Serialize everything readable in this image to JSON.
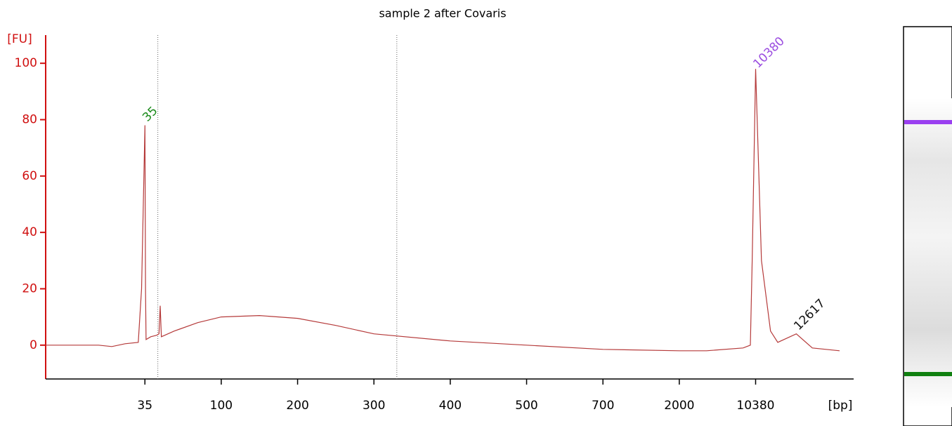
{
  "chart_data": {
    "type": "line",
    "title": "sample 2 after Covaris",
    "ylabel": "[FU]",
    "xlabel": "[bp]",
    "xlim": [
      20,
      15000
    ],
    "xticks": [
      35,
      100,
      200,
      300,
      400,
      500,
      700,
      2000,
      10380
    ],
    "ylim": [
      -12,
      110
    ],
    "yticks": [
      0,
      20,
      40,
      60,
      80,
      100
    ],
    "series": [
      {
        "color": "#b53a3a",
        "x": [
          20,
          28,
          30,
          32,
          34,
          34.5,
          35,
          35.5,
          36,
          40,
          45,
          47,
          48,
          49,
          60,
          80,
          100,
          150,
          200,
          250,
          300,
          400,
          500,
          700,
          2000,
          5000,
          9000,
          9800,
          10000,
          10380,
          10700,
          11200,
          11600,
          12617,
          13500,
          15000
        ],
        "values": [
          0,
          0,
          -0.5,
          0.5,
          1,
          20,
          78,
          20,
          2,
          3,
          3.5,
          4,
          14,
          3,
          5,
          8,
          10,
          10.5,
          9.5,
          7,
          4,
          1.5,
          0,
          -1.5,
          -2,
          -2,
          -1,
          0,
          30,
          98,
          30,
          5,
          1,
          4,
          -1,
          -2
        ]
      }
    ],
    "regions": [
      46,
      330
    ],
    "annotations": [
      {
        "text": "35",
        "x": 35,
        "y": 80,
        "color": "#1a8a1a"
      },
      {
        "text": "10380",
        "x": 10380,
        "y": 99,
        "color": "#9b4de0"
      },
      {
        "text": "12617",
        "x": 12617,
        "y": 6,
        "color": "#111111"
      }
    ]
  }
}
